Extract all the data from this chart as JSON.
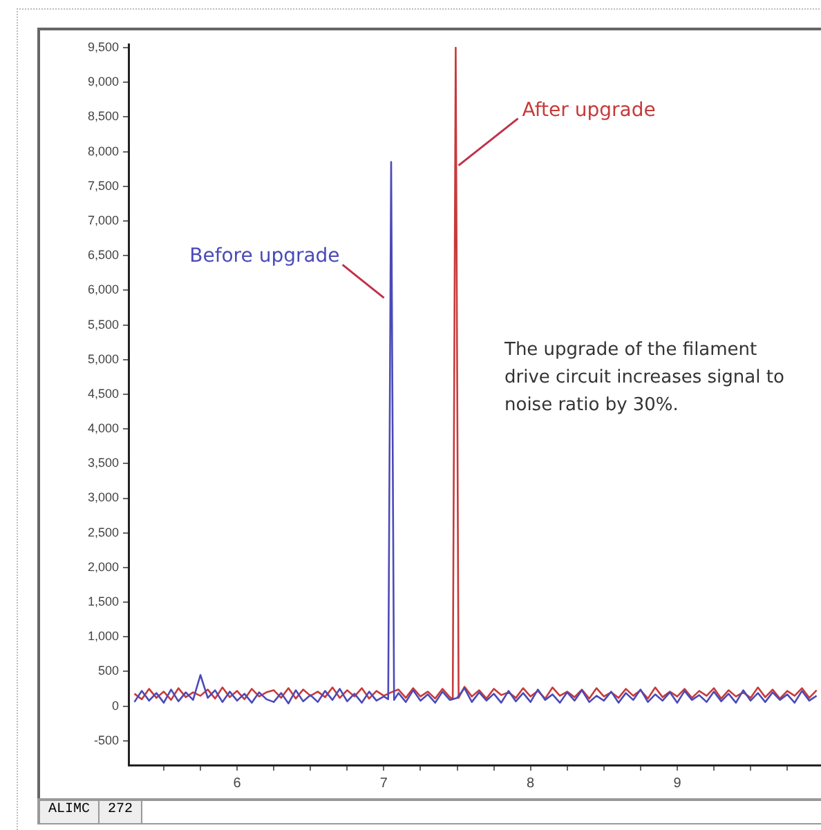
{
  "chart_data": {
    "type": "line",
    "legend": false,
    "grid": false,
    "marker": "none",
    "line_style": "solid",
    "xlim": [
      5.26,
      9.98
    ],
    "xticks": [
      {
        "value": 5.5,
        "label": null
      },
      {
        "value": 5.75,
        "label": null
      },
      6,
      {
        "value": 6.25,
        "label": null
      },
      {
        "value": 6.5,
        "label": null
      },
      {
        "value": 6.75,
        "label": null
      },
      7,
      {
        "value": 7.25,
        "label": null
      },
      {
        "value": 7.5,
        "label": null
      },
      {
        "value": 7.75,
        "label": null
      },
      8,
      {
        "value": 8.25,
        "label": null
      },
      {
        "value": 8.5,
        "label": null
      },
      {
        "value": 8.75,
        "label": null
      },
      9,
      {
        "value": 9.25,
        "label": null
      },
      {
        "value": 9.5,
        "label": null
      },
      {
        "value": 9.75,
        "label": null
      }
    ],
    "ylim": [
      -850,
      9550
    ],
    "yticks": [
      -500,
      0,
      500,
      {
        "value": 1000,
        "label": "1,000"
      },
      {
        "value": 1500,
        "label": "1,500"
      },
      {
        "value": 2000,
        "label": "2,000"
      },
      {
        "value": 2500,
        "label": "2,500"
      },
      {
        "value": 3000,
        "label": "3,000"
      },
      {
        "value": 3500,
        "label": "3,500"
      },
      {
        "value": 4000,
        "label": "4,000"
      },
      {
        "value": 4500,
        "label": "4,500"
      },
      {
        "value": 5000,
        "label": "5,000"
      },
      {
        "value": 5500,
        "label": "5,500"
      },
      {
        "value": 6000,
        "label": "6,000"
      },
      {
        "value": 6500,
        "label": "6,500"
      },
      {
        "value": 7000,
        "label": "7,000"
      },
      {
        "value": 7500,
        "label": "7,500"
      },
      {
        "value": 8000,
        "label": "8,000"
      },
      {
        "value": 8500,
        "label": "8,500"
      },
      {
        "value": 9000,
        "label": "9,000"
      },
      {
        "value": 9500,
        "label": "9,500"
      }
    ],
    "series": [
      {
        "color": "#4a4ab8",
        "x": [
          5.3,
          5.35,
          5.4,
          5.45,
          5.5,
          5.55,
          5.6,
          5.65,
          5.7,
          5.75,
          5.8,
          5.85,
          5.9,
          5.95,
          6.0,
          6.05,
          6.1,
          6.15,
          6.2,
          6.25,
          6.3,
          6.35,
          6.4,
          6.45,
          6.5,
          6.55,
          6.6,
          6.65,
          6.7,
          6.75,
          6.8,
          6.85,
          6.9,
          6.95,
          7.0,
          7.03,
          7.05,
          7.07,
          7.1,
          7.15,
          7.2,
          7.25,
          7.3,
          7.35,
          7.4,
          7.45,
          7.5,
          7.55,
          7.6,
          7.65,
          7.7,
          7.75,
          7.8,
          7.85,
          7.9,
          7.95,
          8.0,
          8.05,
          8.1,
          8.15,
          8.2,
          8.25,
          8.3,
          8.35,
          8.4,
          8.45,
          8.5,
          8.55,
          8.6,
          8.65,
          8.7,
          8.75,
          8.8,
          8.85,
          8.9,
          8.95,
          9.0,
          9.05,
          9.1,
          9.15,
          9.2,
          9.25,
          9.3,
          9.35,
          9.4,
          9.45,
          9.5,
          9.55,
          9.6,
          9.65,
          9.7,
          9.75,
          9.8,
          9.85,
          9.9,
          9.95
        ],
        "values": [
          60,
          220,
          80,
          190,
          50,
          240,
          70,
          200,
          90,
          450,
          120,
          230,
          60,
          210,
          80,
          180,
          50,
          200,
          100,
          60,
          190,
          40,
          230,
          70,
          160,
          60,
          220,
          90,
          250,
          70,
          180,
          50,
          210,
          80,
          140,
          100,
          7850,
          90,
          190,
          60,
          230,
          80,
          170,
          50,
          210,
          90,
          120,
          260,
          60,
          200,
          80,
          180,
          50,
          220,
          70,
          190,
          60,
          240,
          90,
          170,
          50,
          200,
          80,
          230,
          60,
          150,
          80,
          210,
          50,
          190,
          90,
          240,
          60,
          170,
          80,
          200,
          50,
          220,
          90,
          160,
          60,
          210,
          70,
          180,
          50,
          230,
          80,
          190,
          60,
          200,
          90,
          170,
          50,
          220,
          80,
          150
        ]
      },
      {
        "color": "#c83a3a",
        "x": [
          5.3,
          5.35,
          5.4,
          5.45,
          5.5,
          5.55,
          5.6,
          5.65,
          5.7,
          5.75,
          5.8,
          5.85,
          5.9,
          5.95,
          6.0,
          6.05,
          6.1,
          6.15,
          6.2,
          6.25,
          6.3,
          6.35,
          6.4,
          6.45,
          6.5,
          6.55,
          6.6,
          6.65,
          6.7,
          6.75,
          6.8,
          6.85,
          6.9,
          6.95,
          7.0,
          7.05,
          7.1,
          7.15,
          7.2,
          7.25,
          7.3,
          7.35,
          7.4,
          7.45,
          7.47,
          7.49,
          7.51,
          7.55,
          7.6,
          7.65,
          7.7,
          7.75,
          7.8,
          7.85,
          7.9,
          7.95,
          8.0,
          8.05,
          8.1,
          8.15,
          8.2,
          8.25,
          8.3,
          8.35,
          8.4,
          8.45,
          8.5,
          8.55,
          8.6,
          8.65,
          8.7,
          8.75,
          8.8,
          8.85,
          8.9,
          8.95,
          9.0,
          9.05,
          9.1,
          9.15,
          9.2,
          9.25,
          9.3,
          9.35,
          9.4,
          9.45,
          9.5,
          9.55,
          9.6,
          9.65,
          9.7,
          9.75,
          9.8,
          9.85,
          9.9,
          9.95
        ],
        "values": [
          180,
          100,
          250,
          120,
          210,
          90,
          260,
          130,
          200,
          150,
          240,
          110,
          270,
          130,
          220,
          100,
          250,
          140,
          200,
          230,
          120,
          260,
          110,
          240,
          150,
          210,
          130,
          270,
          120,
          230,
          140,
          260,
          110,
          220,
          150,
          200,
          240,
          120,
          260,
          140,
          210,
          110,
          250,
          130,
          100,
          9500,
          120,
          280,
          140,
          230,
          110,
          250,
          160,
          200,
          120,
          260,
          140,
          220,
          110,
          270,
          150,
          210,
          130,
          240,
          110,
          260,
          140,
          200,
          120,
          250,
          150,
          230,
          110,
          270,
          130,
          210,
          140,
          250,
          120,
          220,
          150,
          260,
          110,
          230,
          140,
          200,
          120,
          270,
          130,
          240,
          110,
          220,
          150,
          260,
          120,
          230
        ]
      }
    ],
    "annotations": [
      {
        "text": "Before upgrade",
        "x": 7.02,
        "y": 5850
      },
      {
        "text": "After upgrade",
        "x": 7.5,
        "y": 7800
      },
      "The upgrade of the filament drive circuit increases signal to noise ratio by 30%.",
      "ALIMC",
      "272"
    ]
  }
}
